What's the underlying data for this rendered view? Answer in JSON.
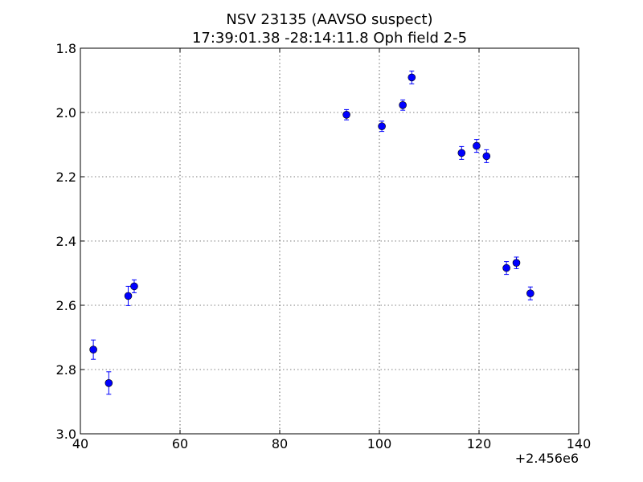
{
  "chart_data": {
    "type": "scatter",
    "title_lines": [
      "NSV 23135 (AAVSO suspect)",
      "17:39:01.38 -28:14:11.8 Oph field 2-5"
    ],
    "x_offset_label": "+2.456e6",
    "xlim": [
      40,
      140
    ],
    "ylim": [
      3.0,
      1.8
    ],
    "y_inverted": true,
    "x_ticks": [
      40,
      60,
      80,
      100,
      120,
      140
    ],
    "y_ticks": [
      1.8,
      2.0,
      2.2,
      2.4,
      2.6,
      2.8,
      3.0
    ],
    "x_tick_labels": [
      "40",
      "60",
      "80",
      "100",
      "120",
      "140"
    ],
    "y_tick_labels": [
      "1.8",
      "2.0",
      "2.2",
      "2.4",
      "2.6",
      "2.8",
      "3.0"
    ],
    "grid": true,
    "marker_color": "#0000ff",
    "series": [
      {
        "points": [
          {
            "x": 42.6,
            "y": 2.738,
            "err": 0.03
          },
          {
            "x": 45.7,
            "y": 2.842,
            "err": 0.035
          },
          {
            "x": 49.6,
            "y": 2.571,
            "err": 0.03
          },
          {
            "x": 50.8,
            "y": 2.541,
            "err": 0.02
          },
          {
            "x": 93.4,
            "y": 2.007,
            "err": 0.016
          },
          {
            "x": 100.5,
            "y": 2.043,
            "err": 0.016
          },
          {
            "x": 104.7,
            "y": 1.977,
            "err": 0.016
          },
          {
            "x": 106.5,
            "y": 1.891,
            "err": 0.02
          },
          {
            "x": 116.5,
            "y": 2.126,
            "err": 0.02
          },
          {
            "x": 119.5,
            "y": 2.104,
            "err": 0.02
          },
          {
            "x": 121.5,
            "y": 2.136,
            "err": 0.02
          },
          {
            "x": 125.5,
            "y": 2.484,
            "err": 0.02
          },
          {
            "x": 127.5,
            "y": 2.468,
            "err": 0.018
          },
          {
            "x": 130.3,
            "y": 2.563,
            "err": 0.02
          }
        ]
      }
    ]
  }
}
